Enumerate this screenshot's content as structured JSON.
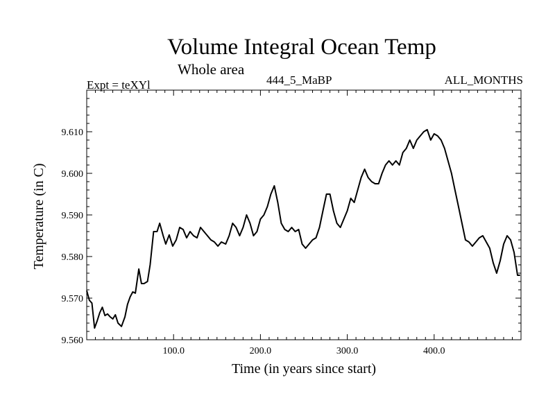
{
  "chart_data": {
    "type": "line",
    "title": "Volume Integral Ocean Temp",
    "subtitle": "Whole area",
    "experiment_label": "Expt = teXYl",
    "run_label": "444_5_MaBP",
    "months_label": "ALL_MONTHS",
    "xlabel": "Time (in years since start)",
    "ylabel": "Temperature (in C)",
    "xlim": [
      0,
      500
    ],
    "ylim": [
      9.56,
      9.62
    ],
    "x_ticks": [
      {
        "value": 100,
        "label": "100.0"
      },
      {
        "value": 200,
        "label": "200.0"
      },
      {
        "value": 300,
        "label": "300.0"
      },
      {
        "value": 400,
        "label": "400.0"
      }
    ],
    "y_ticks": [
      {
        "value": 9.56,
        "label": "9.560"
      },
      {
        "value": 9.57,
        "label": "9.570"
      },
      {
        "value": 9.58,
        "label": "9.580"
      },
      {
        "value": 9.59,
        "label": "9.590"
      },
      {
        "value": 9.6,
        "label": "9.600"
      },
      {
        "value": 9.61,
        "label": "9.610"
      }
    ],
    "grid": false,
    "series": [
      {
        "color": "#000000",
        "x": [
          0,
          3,
          6,
          9,
          12,
          15,
          18,
          21,
          24,
          27,
          30,
          33,
          36,
          40,
          44,
          47,
          50,
          53,
          56,
          60,
          63,
          66,
          70,
          73,
          77,
          81,
          84,
          88,
          91,
          95,
          99,
          103,
          107,
          111,
          115,
          119,
          123,
          127,
          131,
          135,
          139,
          143,
          147,
          151,
          155,
          160,
          164,
          168,
          172,
          176,
          180,
          184,
          188,
          192,
          196,
          200,
          204,
          208,
          212,
          216,
          220,
          224,
          228,
          232,
          236,
          240,
          244,
          248,
          252,
          256,
          260,
          264,
          268,
          272,
          276,
          280,
          284,
          288,
          292,
          296,
          300,
          304,
          308,
          312,
          316,
          320,
          324,
          328,
          332,
          336,
          340,
          344,
          348,
          352,
          356,
          360,
          364,
          368,
          372,
          376,
          380,
          384,
          388,
          392,
          396,
          400,
          404,
          408,
          412,
          416,
          420,
          424,
          428,
          432,
          436,
          440,
          444,
          448,
          452,
          456,
          460,
          464,
          468,
          472,
          476,
          480,
          484,
          488,
          492,
          496,
          499
        ],
        "y": [
          9.5718,
          9.5695,
          9.5688,
          9.5628,
          9.5645,
          9.5665,
          9.5678,
          9.5658,
          9.5662,
          9.5655,
          9.565,
          9.566,
          9.564,
          9.5632,
          9.5655,
          9.5685,
          9.5703,
          9.5715,
          9.5712,
          9.577,
          9.5735,
          9.5735,
          9.574,
          9.578,
          9.586,
          9.586,
          9.588,
          9.585,
          9.583,
          9.5852,
          9.5825,
          9.584,
          9.587,
          9.5865,
          9.5845,
          9.586,
          9.585,
          9.5845,
          9.587,
          9.586,
          9.585,
          9.584,
          9.5835,
          9.5825,
          9.5835,
          9.583,
          9.585,
          9.588,
          9.587,
          9.585,
          9.587,
          9.59,
          9.588,
          9.585,
          9.586,
          9.589,
          9.59,
          9.592,
          9.595,
          9.597,
          9.593,
          9.588,
          9.5865,
          9.586,
          9.587,
          9.586,
          9.5865,
          9.583,
          9.582,
          9.583,
          9.584,
          9.5845,
          9.587,
          9.591,
          9.595,
          9.595,
          9.591,
          9.588,
          9.587,
          9.589,
          9.591,
          9.594,
          9.593,
          9.596,
          9.599,
          9.601,
          9.599,
          9.598,
          9.5975,
          9.5975,
          9.6,
          9.602,
          9.603,
          9.602,
          9.603,
          9.602,
          9.605,
          9.606,
          9.608,
          9.606,
          9.608,
          9.609,
          9.61,
          9.6105,
          9.608,
          9.6095,
          9.609,
          9.608,
          9.606,
          9.603,
          9.6,
          9.596,
          9.592,
          9.588,
          9.584,
          9.5835,
          9.5825,
          9.5835,
          9.5845,
          9.585,
          9.5835,
          9.582,
          9.5785,
          9.576,
          9.579,
          9.583,
          9.585,
          9.584,
          9.581,
          9.5755,
          9.5755
        ]
      }
    ]
  }
}
